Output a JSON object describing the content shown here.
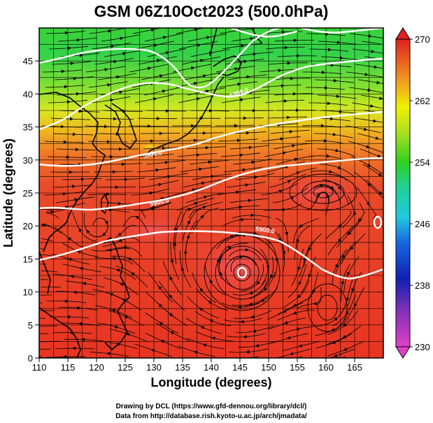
{
  "title": "GSM 06Z10Oct2023 (500.0hPa)",
  "xlabel": "Longitude (degrees)",
  "ylabel": "Latitude  (degrees)",
  "xticks": [
    110,
    115,
    120,
    125,
    130,
    135,
    140,
    145,
    150,
    155,
    160,
    165
  ],
  "yticks": [
    0,
    5,
    10,
    15,
    20,
    25,
    30,
    35,
    40,
    45
  ],
  "colorbar_ticks": [
    230,
    238,
    246,
    254,
    262,
    270
  ],
  "colorbar_colors": [
    "#e040c8",
    "#1020b0",
    "#20c8e0",
    "#30d020",
    "#f0f000",
    "#e02020"
  ],
  "contour_label": "5900.0",
  "credits": {
    "line1": "Drawing by DCL (https://www.gfd-dennou.org/library/dcl/)",
    "line2": "Data from http://database.rish.kyoto-u.ac.jp/arch/jmadata/"
  },
  "map_data": {
    "type": "streamline-temperature-map",
    "lon_range": [
      110,
      170
    ],
    "lat_range": [
      0,
      50
    ],
    "colorbar_range": [
      230,
      270
    ],
    "contour_values": [
      5900,
      5700,
      5800
    ]
  }
}
